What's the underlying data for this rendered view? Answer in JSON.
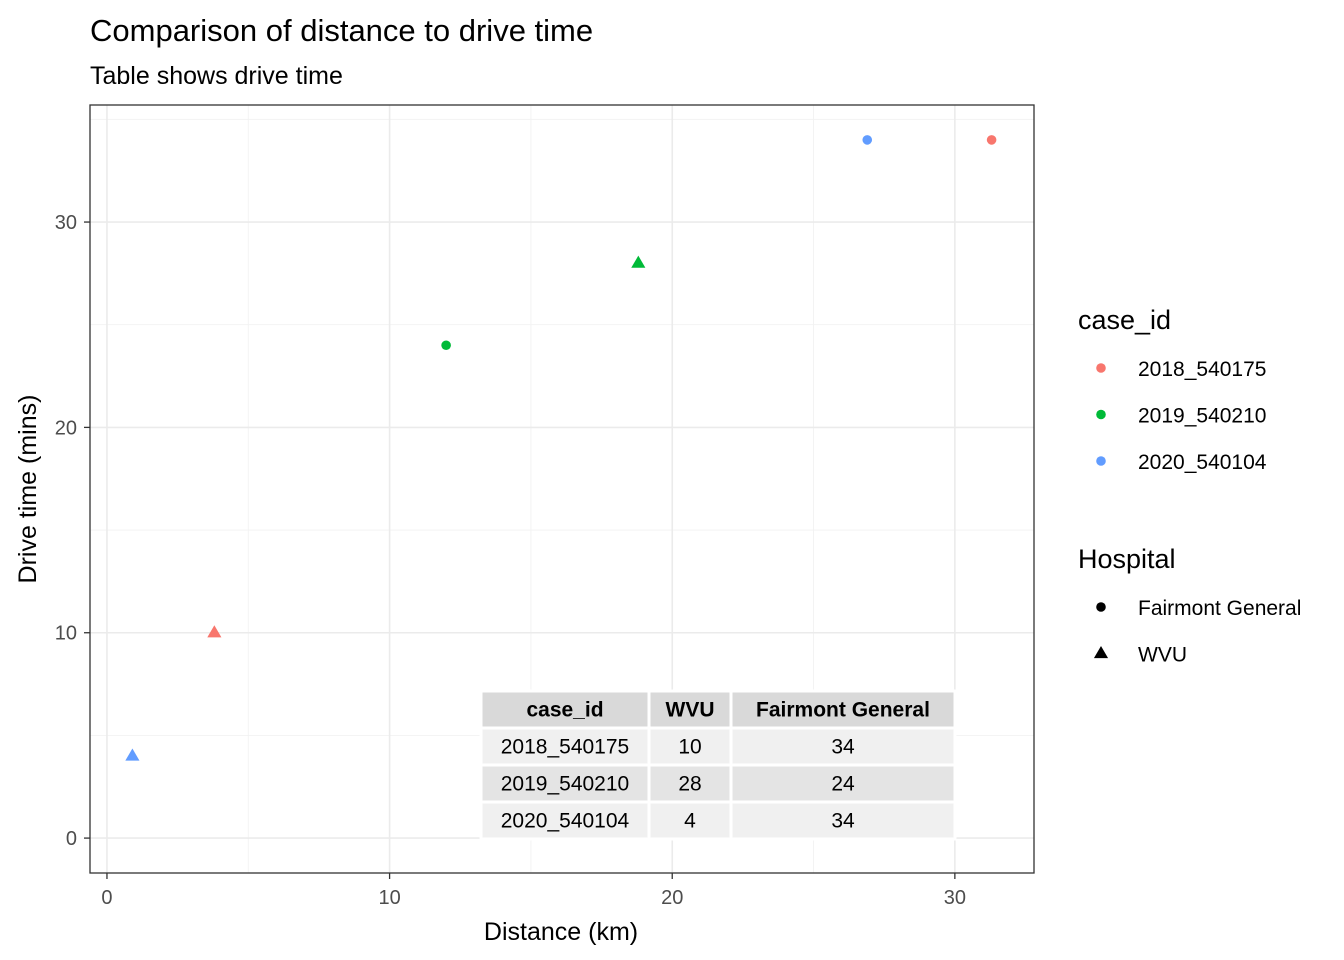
{
  "chart_data": {
    "type": "scatter",
    "title": "Comparison of distance to drive time",
    "subtitle": "Table shows drive time",
    "xlabel": "Distance (km)",
    "ylabel": "Drive time (mins)",
    "xlim": [
      -0.6,
      32.8
    ],
    "ylim": [
      -1.7,
      35.7
    ],
    "x_ticks": [
      0,
      10,
      20,
      30
    ],
    "y_ticks": [
      0,
      10,
      20,
      30
    ],
    "x_tick_labels": [
      "0",
      "10",
      "20",
      "30"
    ],
    "y_tick_labels": [
      "0",
      "10",
      "20",
      "30"
    ],
    "grid": true,
    "series": [
      {
        "name": "2018_540175",
        "color": "#F8766D",
        "points": [
          {
            "x": 3.8,
            "y": 10,
            "hospital": "WVU"
          },
          {
            "x": 31.3,
            "y": 34,
            "hospital": "Fairmont General"
          }
        ]
      },
      {
        "name": "2019_540210",
        "color": "#00BA38",
        "points": [
          {
            "x": 18.8,
            "y": 28,
            "hospital": "WVU"
          },
          {
            "x": 12.0,
            "y": 24,
            "hospital": "Fairmont General"
          }
        ]
      },
      {
        "name": "2020_540104",
        "color": "#619CFF",
        "points": [
          {
            "x": 0.9,
            "y": 4,
            "hospital": "WVU"
          },
          {
            "x": 26.9,
            "y": 34,
            "hospital": "Fairmont General"
          }
        ]
      }
    ],
    "legends": [
      {
        "title": "case_id",
        "items": [
          {
            "label": "2018_540175",
            "color": "#F8766D",
            "shape": "circle"
          },
          {
            "label": "2019_540210",
            "color": "#00BA38",
            "shape": "circle"
          },
          {
            "label": "2020_540104",
            "color": "#619CFF",
            "shape": "circle"
          }
        ]
      },
      {
        "title": "Hospital",
        "items": [
          {
            "label": "Fairmont General",
            "color": "#000000",
            "shape": "circle"
          },
          {
            "label": "WVU",
            "color": "#000000",
            "shape": "triangle"
          }
        ]
      }
    ],
    "legend_position": "right",
    "table": {
      "header": [
        "case_id",
        "WVU",
        "Fairmont General"
      ],
      "rows": [
        [
          "2018_540175",
          "10",
          "34"
        ],
        [
          "2019_540210",
          "28",
          "24"
        ],
        [
          "2020_540104",
          "4",
          "34"
        ]
      ],
      "header_color": "#d9d9d9",
      "row_colors": [
        "#f0f0f0",
        "#e4e4e4"
      ]
    }
  }
}
